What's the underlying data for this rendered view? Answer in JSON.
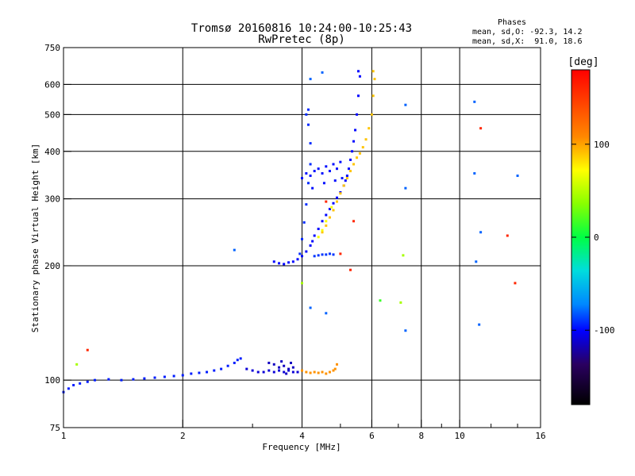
{
  "chart_data": {
    "type": "scatter",
    "title": "Tromsø 20160816 10:24:00-10:25:43",
    "subtitle": "RwPretec (8p)",
    "xlabel": "Frequency [MHz]",
    "ylabel": "Stationary phase Virtual Height [km]",
    "x_scale": "log",
    "y_scale": "log",
    "xlim": [
      1,
      16
    ],
    "ylim": [
      75,
      750
    ],
    "x_ticks": [
      1,
      2,
      4,
      6,
      8,
      10,
      16
    ],
    "x_tick_labels": [
      "1",
      "2",
      "4",
      "6",
      "8",
      "10",
      "16"
    ],
    "y_ticks": [
      75,
      100,
      200,
      300,
      400,
      500,
      600,
      750
    ],
    "y_tick_labels": [
      "75",
      "100",
      "200",
      "300",
      "400",
      "500",
      "600",
      "750"
    ],
    "grid": true,
    "phases_box": {
      "heading": "Phases",
      "o_line": "mean, sd,O: -92.3, 14.2",
      "x_line": "mean, sd,X:  91.0, 18.6"
    },
    "colorbar": {
      "label": "[deg]",
      "range": [
        -180,
        180
      ],
      "ticks": [
        100,
        0,
        -100
      ],
      "tick_labels": [
        "100",
        "0",
        "-100"
      ]
    },
    "traces": [
      {
        "phase": -95,
        "points": [
          [
            1.0,
            93
          ],
          [
            1.03,
            95
          ],
          [
            1.06,
            97
          ],
          [
            1.1,
            98
          ],
          [
            1.15,
            99
          ],
          [
            1.2,
            100
          ],
          [
            1.3,
            100.5
          ],
          [
            1.4,
            100
          ],
          [
            1.5,
            100.5
          ],
          [
            1.6,
            101
          ],
          [
            1.7,
            101.5
          ],
          [
            1.8,
            102
          ],
          [
            1.9,
            102.5
          ],
          [
            2.0,
            103
          ],
          [
            2.1,
            104
          ],
          [
            2.2,
            104.5
          ],
          [
            2.3,
            105
          ],
          [
            2.4,
            106
          ],
          [
            2.5,
            107
          ],
          [
            2.6,
            109
          ],
          [
            2.7,
            111
          ],
          [
            2.75,
            113
          ],
          [
            2.8,
            114
          ]
        ]
      },
      {
        "phase": -110,
        "points": [
          [
            2.9,
            107
          ],
          [
            3.0,
            106
          ],
          [
            3.1,
            105
          ],
          [
            3.2,
            105
          ],
          [
            3.3,
            106
          ],
          [
            3.4,
            105
          ],
          [
            3.5,
            106
          ],
          [
            3.6,
            105
          ],
          [
            3.7,
            106
          ],
          [
            3.8,
            105
          ],
          [
            3.9,
            105
          ]
        ]
      },
      {
        "phase": -115,
        "points": [
          [
            3.4,
            110
          ],
          [
            3.5,
            108
          ],
          [
            3.6,
            109
          ],
          [
            3.7,
            107
          ],
          [
            3.8,
            108
          ],
          [
            3.3,
            111
          ],
          [
            3.55,
            112
          ],
          [
            3.75,
            111
          ],
          [
            3.65,
            104
          ]
        ]
      },
      {
        "phase": 105,
        "points": [
          [
            4.0,
            106
          ],
          [
            4.1,
            105
          ],
          [
            4.2,
            104.5
          ],
          [
            4.3,
            105
          ],
          [
            4.4,
            104.5
          ],
          [
            4.5,
            105
          ],
          [
            4.6,
            104
          ],
          [
            4.7,
            105
          ],
          [
            4.8,
            106
          ],
          [
            4.9,
            110
          ],
          [
            4.85,
            107
          ]
        ]
      },
      {
        "phase": -100,
        "points": [
          [
            3.4,
            205
          ],
          [
            3.5,
            203
          ],
          [
            3.6,
            202
          ],
          [
            3.7,
            204
          ],
          [
            3.8,
            205
          ],
          [
            3.9,
            208
          ],
          [
            4.0,
            212
          ],
          [
            4.1,
            218
          ],
          [
            4.2,
            226
          ],
          [
            4.25,
            232
          ],
          [
            4.3,
            240
          ],
          [
            4.4,
            250
          ],
          [
            4.5,
            262
          ],
          [
            4.6,
            272
          ],
          [
            4.7,
            282
          ],
          [
            4.8,
            292
          ],
          [
            4.9,
            302
          ],
          [
            5.0,
            312
          ],
          [
            5.1,
            325
          ],
          [
            5.15,
            335
          ],
          [
            5.2,
            345
          ],
          [
            5.25,
            360
          ],
          [
            5.3,
            380
          ],
          [
            5.35,
            400
          ],
          [
            5.4,
            425
          ],
          [
            5.45,
            455
          ],
          [
            5.5,
            500
          ],
          [
            5.55,
            560
          ],
          [
            5.6,
            630
          ],
          [
            5.55,
            650
          ]
        ]
      },
      {
        "phase": -98,
        "points": [
          [
            4.0,
            340
          ],
          [
            4.1,
            350
          ],
          [
            4.2,
            345
          ],
          [
            4.3,
            355
          ],
          [
            4.4,
            360
          ],
          [
            4.5,
            350
          ],
          [
            4.6,
            365
          ],
          [
            4.7,
            355
          ],
          [
            4.8,
            370
          ],
          [
            4.9,
            360
          ],
          [
            5.0,
            375
          ],
          [
            4.25,
            320
          ],
          [
            4.55,
            330
          ],
          [
            4.85,
            335
          ],
          [
            5.05,
            340
          ]
        ]
      },
      {
        "phase": -92,
        "points": [
          [
            3.95,
            215
          ],
          [
            4.0,
            235
          ],
          [
            4.05,
            260
          ],
          [
            4.1,
            290
          ],
          [
            4.15,
            330
          ],
          [
            4.2,
            370
          ],
          [
            4.2,
            420
          ],
          [
            4.15,
            470
          ],
          [
            4.1,
            500
          ],
          [
            4.15,
            515
          ]
        ]
      },
      {
        "phase": -90,
        "points": [
          [
            4.3,
            212
          ],
          [
            4.4,
            213
          ],
          [
            4.5,
            214
          ],
          [
            4.6,
            214
          ],
          [
            4.7,
            215
          ],
          [
            4.8,
            214
          ]
        ]
      },
      {
        "phase": 90,
        "points": [
          [
            4.5,
            245
          ],
          [
            4.6,
            255
          ],
          [
            4.7,
            268
          ],
          [
            4.8,
            280
          ],
          [
            4.9,
            295
          ],
          [
            5.0,
            310
          ],
          [
            5.1,
            325
          ],
          [
            5.2,
            340
          ],
          [
            5.3,
            355
          ],
          [
            5.4,
            370
          ],
          [
            5.5,
            385
          ],
          [
            5.6,
            395
          ],
          [
            5.7,
            410
          ],
          [
            5.8,
            430
          ],
          [
            5.9,
            460
          ],
          [
            6.0,
            500
          ],
          [
            6.05,
            560
          ],
          [
            6.1,
            620
          ],
          [
            6.05,
            650
          ]
        ]
      },
      {
        "phase": 70,
        "points": [
          [
            4.4,
            238
          ],
          [
            4.5,
            248
          ],
          [
            4.6,
            262
          ],
          [
            4.75,
            285
          ]
        ]
      },
      {
        "phase": -80,
        "points": [
          [
            4.2,
            620
          ],
          [
            4.5,
            645
          ],
          [
            7.3,
            530
          ],
          [
            10.9,
            540
          ],
          [
            7.3,
            320
          ],
          [
            7.3,
            135
          ],
          [
            11.2,
            140
          ],
          [
            11.0,
            205
          ],
          [
            11.3,
            245
          ],
          [
            10.9,
            350
          ],
          [
            14.0,
            345
          ],
          [
            2.7,
            220
          ],
          [
            4.2,
            155
          ],
          [
            4.6,
            150
          ]
        ]
      },
      {
        "phase": 160,
        "points": [
          [
            1.15,
            120
          ],
          [
            11.3,
            460
          ],
          [
            13.2,
            240
          ],
          [
            13.8,
            180
          ],
          [
            5.4,
            262
          ],
          [
            5.3,
            195
          ],
          [
            4.6,
            295
          ],
          [
            5.0,
            215
          ]
        ]
      },
      {
        "phase": 45,
        "points": [
          [
            1.08,
            110
          ],
          [
            4.0,
            180
          ],
          [
            7.1,
            160
          ],
          [
            7.2,
            213
          ]
        ]
      },
      {
        "phase": 15,
        "points": [
          [
            6.3,
            162
          ]
        ]
      }
    ]
  }
}
